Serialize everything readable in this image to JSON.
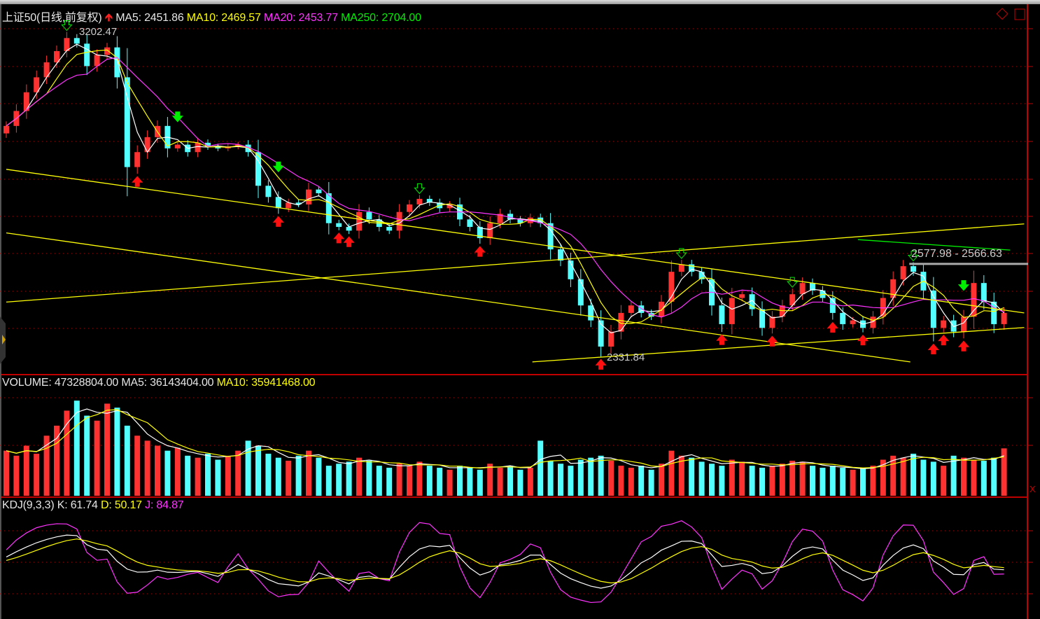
{
  "header": {
    "title": "上证50(日线,前复权)",
    "ma5": "MA5: 2451.86",
    "ma10": "MA10: 2469.57",
    "ma20": "MA20: 2453.77",
    "ma250": "MA250: 2704.00"
  },
  "volume_header": {
    "volume": "VOLUME: 47328804.00",
    "ma5": "MA5: 36143404.00",
    "ma10": "MA10: 35941468.00"
  },
  "kdj_header": {
    "name": "KDJ(9,3,3)",
    "k": "K: 61.74",
    "d": "D: 50.17",
    "j": "J: 84.87"
  },
  "annotations": {
    "high_label": "3202.47",
    "low_label": "2331.84",
    "range_label": "2577.98 - 2566.63"
  },
  "colors": {
    "up": "#ff3232",
    "down": "#54ffff",
    "ma5": "#ffffff",
    "ma10": "#ffff00",
    "ma20": "#ff33ff",
    "ma250": "#00ee00",
    "grid": "#b00000"
  },
  "chart_data": {
    "type": "candlestick",
    "price_range": [
      2331.84,
      3202.47
    ],
    "closes": [
      2950,
      2990,
      3040,
      3080,
      3120,
      3150,
      3185,
      3170,
      3110,
      3140,
      3160,
      3080,
      2840,
      2880,
      2920,
      2950,
      2890,
      2900,
      2880,
      2905,
      2895,
      2890,
      2895,
      2900,
      2880,
      2790,
      2760,
      2730,
      2745,
      2740,
      2780,
      2770,
      2690,
      2680,
      2670,
      2720,
      2700,
      2680,
      2670,
      2720,
      2740,
      2755,
      2745,
      2730,
      2740,
      2700,
      2680,
      2650,
      2690,
      2715,
      2700,
      2690,
      2705,
      2690,
      2620,
      2590,
      2540,
      2470,
      2430,
      2360,
      2400,
      2450,
      2470,
      2450,
      2440,
      2480,
      2560,
      2580,
      2560,
      2540,
      2470,
      2420,
      2490,
      2500,
      2460,
      2410,
      2440,
      2470,
      2500,
      2530,
      2510,
      2490,
      2450,
      2420,
      2430,
      2410,
      2440,
      2490,
      2540,
      2575,
      2560,
      2510,
      2410,
      2430,
      2400,
      2440,
      2530,
      2480,
      2420,
      2450
    ],
    "volumes_millions": [
      45,
      40,
      50,
      42,
      60,
      70,
      85,
      95,
      80,
      75,
      92,
      88,
      70,
      60,
      55,
      50,
      45,
      48,
      40,
      38,
      42,
      36,
      40,
      45,
      55,
      50,
      42,
      38,
      35,
      40,
      45,
      38,
      30,
      32,
      34,
      38,
      35,
      30,
      28,
      32,
      30,
      34,
      30,
      28,
      26,
      30,
      28,
      26,
      32,
      28,
      30,
      26,
      28,
      55,
      35,
      32,
      30,
      36,
      38,
      40,
      35,
      30,
      28,
      30,
      26,
      32,
      45,
      40,
      38,
      34,
      32,
      30,
      36,
      34,
      30,
      28,
      30,
      32,
      35,
      34,
      30,
      28,
      30,
      28,
      26,
      27,
      30,
      36,
      40,
      38,
      42,
      36,
      34,
      30,
      40,
      38,
      36,
      35,
      38,
      47.33
    ],
    "trendlines": [
      {
        "color": "#ffff00",
        "from": [
          0,
          2834
        ],
        "to": [
          101,
          2450
        ]
      },
      {
        "color": "#ffff00",
        "from": [
          0,
          2664
        ],
        "to": [
          89.7,
          2319
        ]
      },
      {
        "color": "#ffff00",
        "from": [
          0,
          2479
        ],
        "to": [
          101,
          2688
        ]
      },
      {
        "color": "#ffff00",
        "from": [
          52.2,
          2319
        ],
        "to": [
          101,
          2411
        ]
      },
      {
        "color": "#00ee00",
        "from": [
          84.5,
          2646
        ],
        "to": [
          99.6,
          2618
        ]
      },
      {
        "color": "#aaaaaa",
        "from": [
          89.6,
          2581
        ],
        "to": [
          101.4,
          2581
        ]
      }
    ],
    "buy_signals": [
      13,
      27,
      33,
      34,
      47,
      59,
      71,
      76,
      82,
      85,
      92,
      93,
      95
    ],
    "sell_signals": [
      17,
      27,
      95
    ],
    "hollow_signals": [
      6,
      41,
      67,
      78,
      90
    ]
  }
}
